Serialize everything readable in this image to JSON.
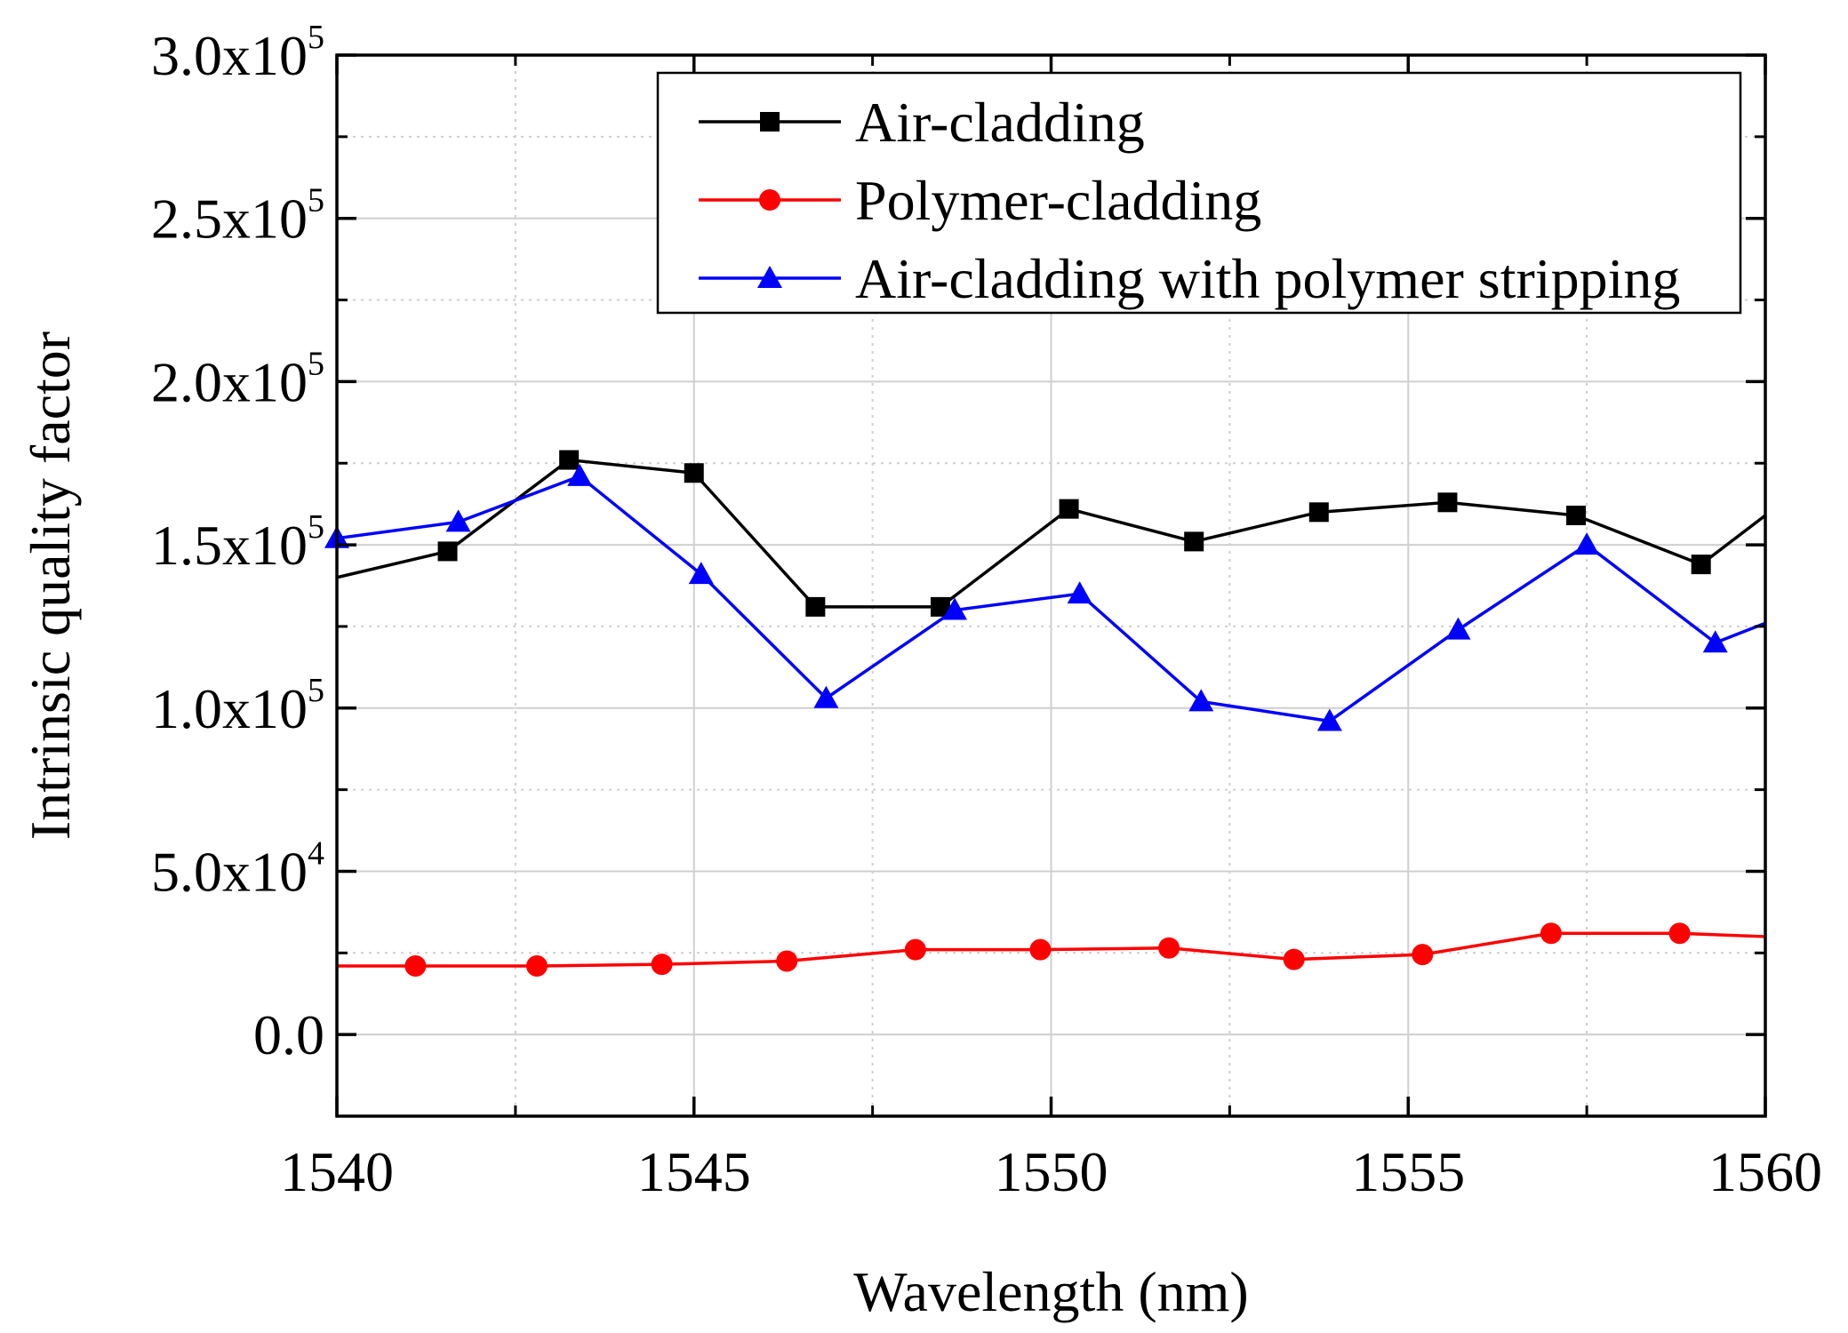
{
  "chart_data": {
    "type": "line",
    "title": "",
    "xlabel": "Wavelength (nm)",
    "ylabel": "Intrinsic quality factor",
    "xlim": [
      1540,
      1560
    ],
    "ylim": [
      -25000,
      300000
    ],
    "grid": true,
    "legend_position": "top-right",
    "x_ticks": [
      {
        "value": 1540,
        "label": "1540"
      },
      {
        "value": 1545,
        "label": "1545"
      },
      {
        "value": 1550,
        "label": "1550"
      },
      {
        "value": 1555,
        "label": "1555"
      },
      {
        "value": 1560,
        "label": "1560"
      }
    ],
    "y_ticks": [
      {
        "value": 0,
        "mantissa": "0.0",
        "exponent": ""
      },
      {
        "value": 50000,
        "mantissa": "5.0x10",
        "exponent": "4"
      },
      {
        "value": 100000,
        "mantissa": "1.0x10",
        "exponent": "5"
      },
      {
        "value": 150000,
        "mantissa": "1.5x10",
        "exponent": "5"
      },
      {
        "value": 200000,
        "mantissa": "2.0x10",
        "exponent": "5"
      },
      {
        "value": 250000,
        "mantissa": "2.5x10",
        "exponent": "5"
      },
      {
        "value": 300000,
        "mantissa": "3.0x10",
        "exponent": "5"
      }
    ],
    "series": [
      {
        "name": "Air-cladding",
        "color": "#000000",
        "marker": "square",
        "x": [
          1540.0,
          1541.55,
          1543.25,
          1545.0,
          1546.7,
          1548.45,
          1550.25,
          1552.0,
          1553.75,
          1555.55,
          1557.35,
          1559.1,
          1560.0
        ],
        "y": [
          140000,
          148000,
          176000,
          172000,
          131000,
          131000,
          161000,
          151000,
          160000,
          163000,
          159000,
          144000,
          159000
        ],
        "markers": [
          false,
          true,
          true,
          true,
          true,
          true,
          true,
          true,
          true,
          true,
          true,
          true,
          false
        ]
      },
      {
        "name": "Polymer-cladding",
        "color": "#ff0000",
        "marker": "circle",
        "x": [
          1540.0,
          1541.1,
          1542.8,
          1544.55,
          1546.3,
          1548.1,
          1549.85,
          1551.65,
          1553.4,
          1555.2,
          1557.0,
          1558.8,
          1560.0
        ],
        "y": [
          21000,
          21000,
          21000,
          21500,
          22500,
          26000,
          26000,
          26500,
          23000,
          24500,
          31000,
          31000,
          30000
        ],
        "markers": [
          false,
          true,
          true,
          true,
          true,
          true,
          true,
          true,
          true,
          true,
          true,
          true,
          false
        ]
      },
      {
        "name": "Air-cladding with polymer stripping",
        "color": "#0000ff",
        "marker": "triangle",
        "x": [
          1540.0,
          1541.7,
          1543.4,
          1545.1,
          1546.85,
          1548.65,
          1550.4,
          1552.1,
          1553.9,
          1555.7,
          1557.5,
          1559.3,
          1560.0
        ],
        "y": [
          152000,
          157000,
          171000,
          141000,
          103000,
          130000,
          135000,
          102000,
          96000,
          124000,
          150000,
          120000,
          126000
        ],
        "markers": [
          true,
          true,
          true,
          true,
          true,
          true,
          true,
          true,
          true,
          true,
          true,
          true,
          false
        ]
      }
    ]
  }
}
